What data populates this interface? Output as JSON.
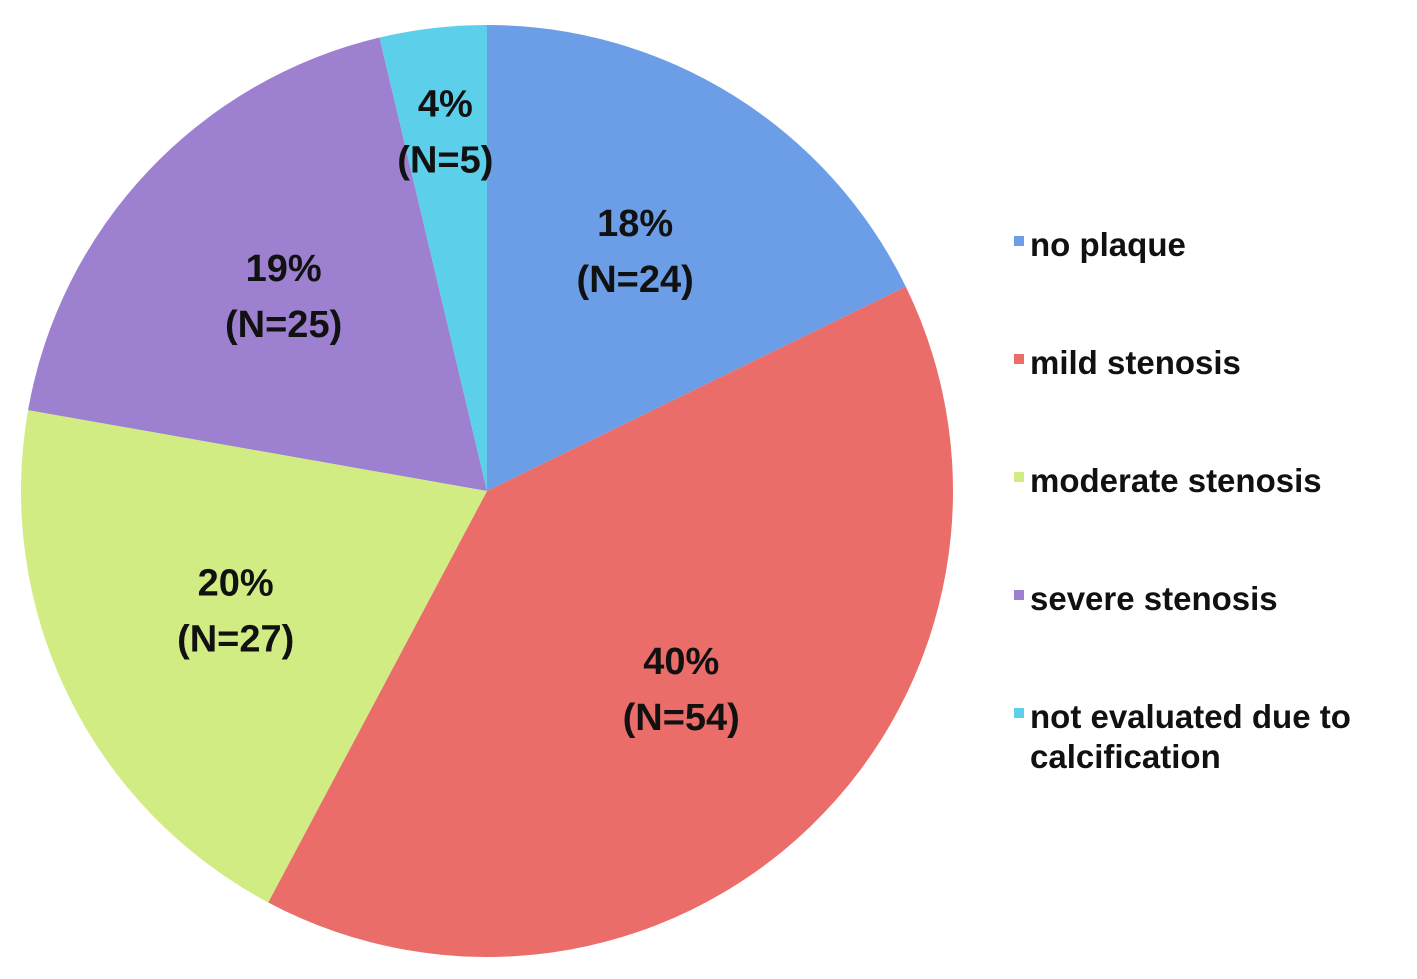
{
  "chart_data": {
    "type": "pie",
    "categories": [
      "no plaque",
      "mild stenosis",
      "moderate stenosis",
      "severe stenosis",
      "not evaluated due to calcification"
    ],
    "values": [
      18,
      40,
      20,
      19,
      4
    ],
    "value_labels": [
      "18%",
      "40%",
      "20%",
      "19%",
      "4%"
    ],
    "counts": [
      24,
      54,
      27,
      25,
      5
    ],
    "count_labels": [
      "(N=24)",
      "(N=54)",
      "(N=27)",
      "(N=25)",
      "(N=5)"
    ],
    "colors": [
      "#6b9ee6",
      "#ea6d69",
      "#d2ec84",
      "#9d80cf",
      "#5ccfeb"
    ],
    "legend": "right"
  }
}
